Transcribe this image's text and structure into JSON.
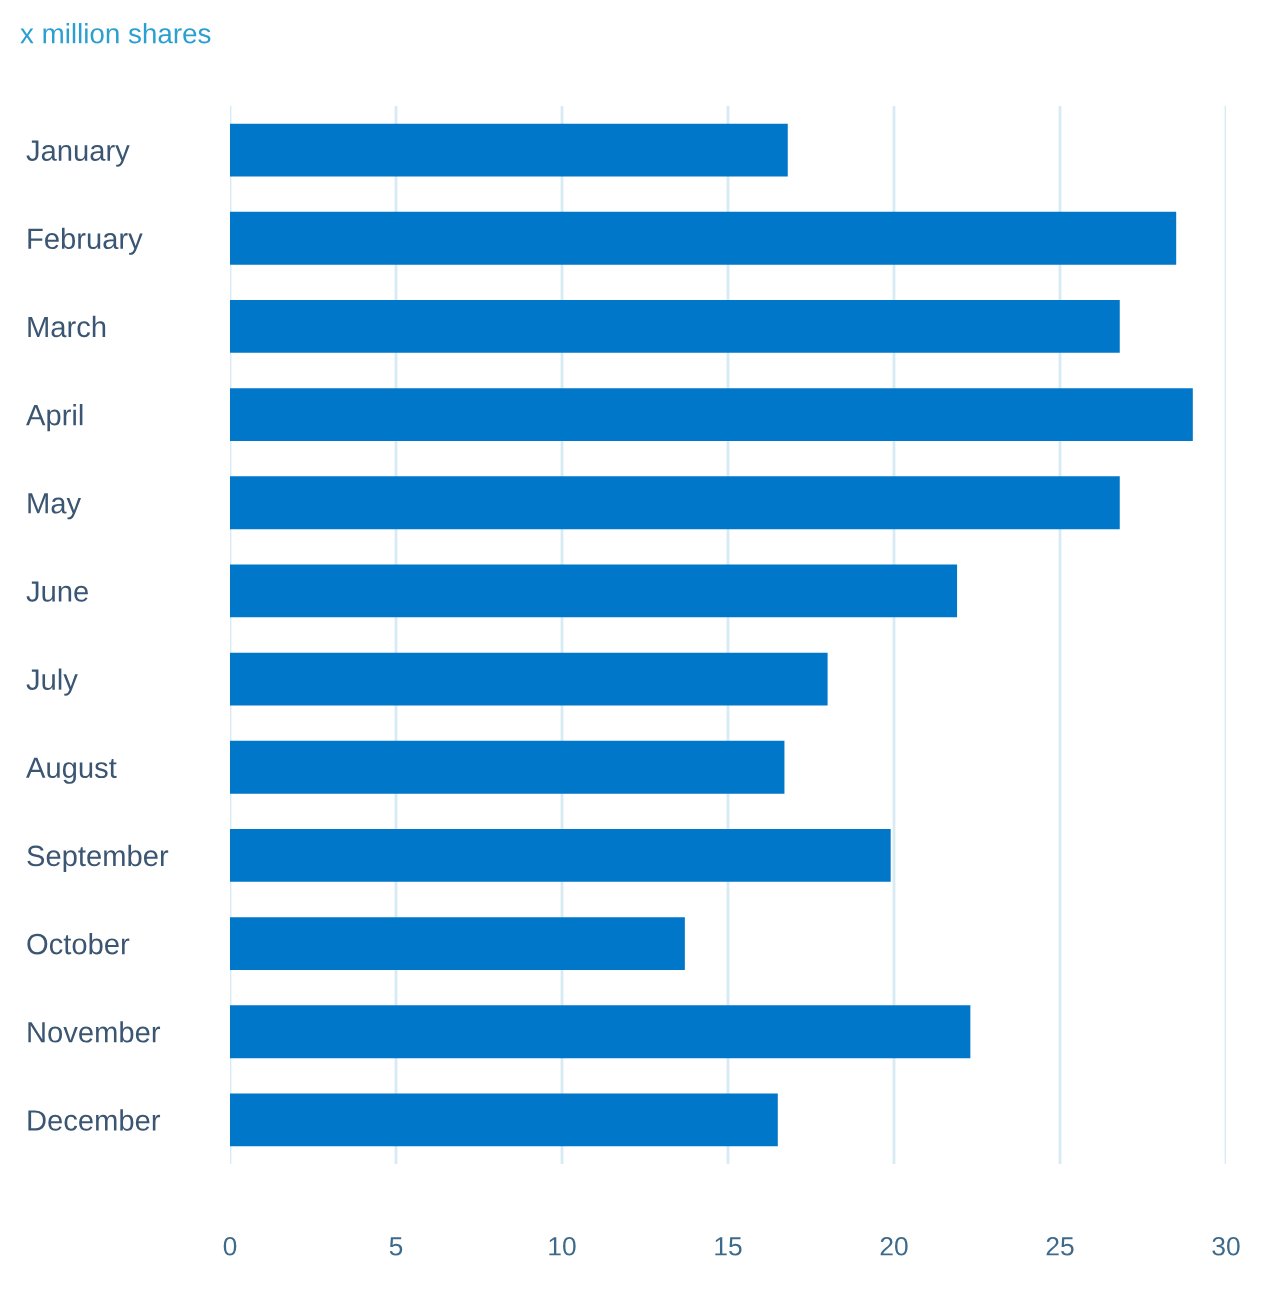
{
  "chart_data": {
    "type": "bar",
    "orientation": "horizontal",
    "subtitle": "x million shares",
    "categories": [
      "January",
      "February",
      "March",
      "April",
      "May",
      "June",
      "July",
      "August",
      "September",
      "October",
      "November",
      "December"
    ],
    "values": [
      16.8,
      28.5,
      26.8,
      29.0,
      26.8,
      21.9,
      18.0,
      16.7,
      19.9,
      13.7,
      22.3,
      16.5
    ],
    "color": "#0077c8",
    "xlim": [
      0,
      30
    ],
    "xticks": [
      0,
      5,
      10,
      15,
      20,
      25,
      30
    ],
    "grid": "x"
  }
}
